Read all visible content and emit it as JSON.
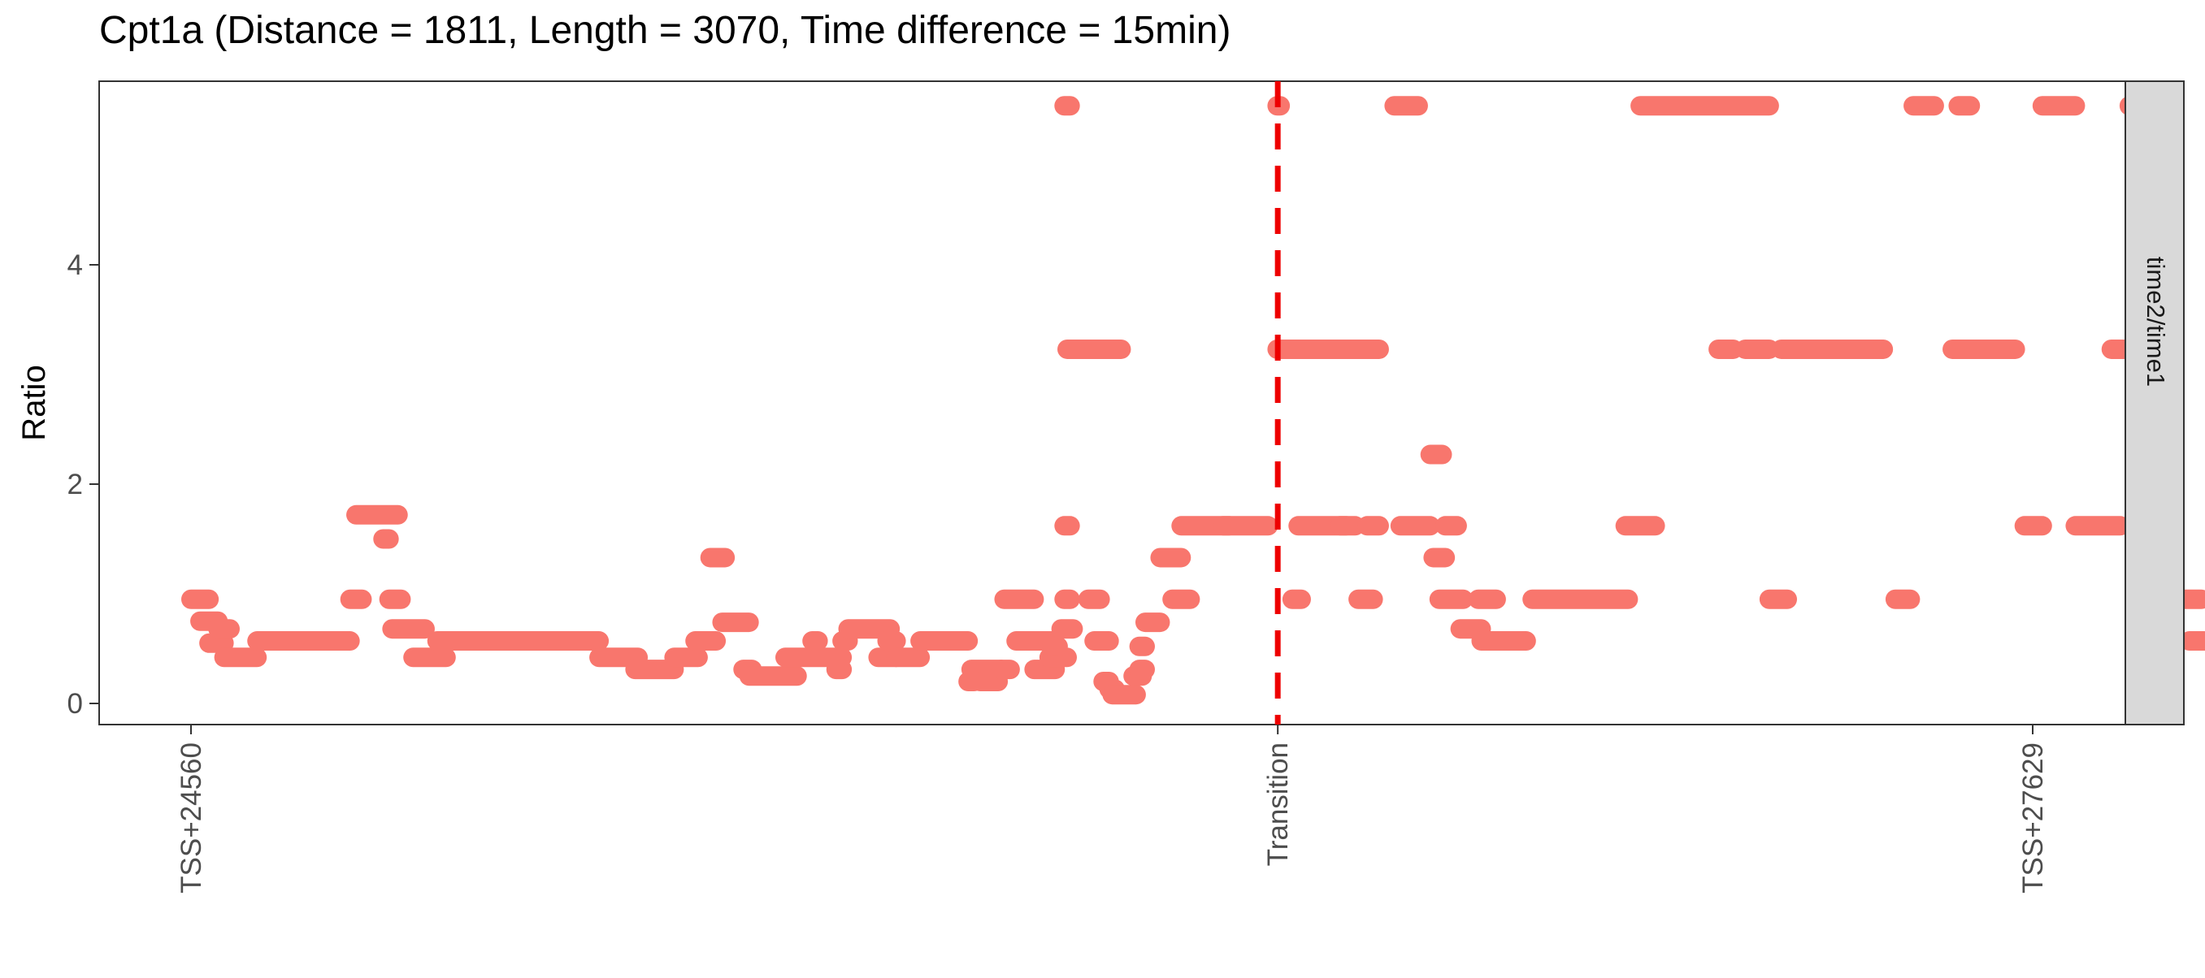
{
  "chart_data": {
    "type": "scatter",
    "title": "Cpt1a (Distance = 1811, Length = 3070, Time difference = 15min)",
    "xlabel": "",
    "ylabel": "Ratio",
    "facet_label": "time2/time1",
    "x_ticks": [
      {
        "label": "TSS+24560",
        "value": 24560
      },
      {
        "label": "Transition",
        "value": 26371
      },
      {
        "label": "TSS+27629",
        "value": 27629
      }
    ],
    "y_ticks": [
      0,
      2,
      4
    ],
    "xlim": [
      24410,
      27780
    ],
    "ylim": [
      -0.2,
      5.7
    ],
    "grid": false,
    "legend": "none",
    "point_color": "#F8766D",
    "vline": {
      "x": 26371,
      "color": "#EE0000",
      "style": "dashed"
    },
    "segments": [
      [
        24560,
        24590,
        0.95
      ],
      [
        24575,
        24605,
        0.75
      ],
      [
        24590,
        24615,
        0.55
      ],
      [
        24605,
        24625,
        0.68
      ],
      [
        24615,
        24670,
        0.42
      ],
      [
        24670,
        24825,
        0.57
      ],
      [
        24825,
        24845,
        0.95
      ],
      [
        24835,
        24905,
        1.72
      ],
      [
        24880,
        24890,
        1.5
      ],
      [
        24890,
        24910,
        0.95
      ],
      [
        24895,
        24950,
        0.68
      ],
      [
        24930,
        24985,
        0.42
      ],
      [
        24970,
        25240,
        0.57
      ],
      [
        25240,
        25305,
        0.42
      ],
      [
        25300,
        25365,
        0.31
      ],
      [
        25365,
        25405,
        0.42
      ],
      [
        25400,
        25435,
        0.57
      ],
      [
        25425,
        25450,
        1.33
      ],
      [
        25445,
        25490,
        0.74
      ],
      [
        25480,
        25495,
        0.31
      ],
      [
        25490,
        25570,
        0.25
      ],
      [
        25550,
        25645,
        0.42
      ],
      [
        25595,
        25605,
        0.57
      ],
      [
        25635,
        25645,
        0.31
      ],
      [
        25645,
        25655,
        0.57
      ],
      [
        25655,
        25725,
        0.68
      ],
      [
        25705,
        25735,
        0.42
      ],
      [
        25720,
        25735,
        0.57
      ],
      [
        25735,
        25775,
        0.42
      ],
      [
        25775,
        25855,
        0.57
      ],
      [
        25855,
        25865,
        0.2
      ],
      [
        25860,
        25910,
        0.31
      ],
      [
        25875,
        25905,
        0.2
      ],
      [
        25910,
        25925,
        0.31
      ],
      [
        25915,
        25965,
        0.95
      ],
      [
        25935,
        25995,
        0.57
      ],
      [
        25965,
        26000,
        0.31
      ],
      [
        25990,
        26020,
        0.42
      ],
      [
        25995,
        26005,
        0.52
      ],
      [
        26010,
        26030,
        0.68
      ],
      [
        26015,
        26025,
        0.95
      ],
      [
        26015,
        26025,
        1.62
      ],
      [
        26015,
        26025,
        5.45
      ],
      [
        26020,
        26110,
        3.23
      ],
      [
        26055,
        26075,
        0.95
      ],
      [
        26065,
        26090,
        0.57
      ],
      [
        26080,
        26090,
        0.2
      ],
      [
        26090,
        26100,
        0.13
      ],
      [
        26095,
        26135,
        0.08
      ],
      [
        26130,
        26145,
        0.25
      ],
      [
        26140,
        26150,
        0.31
      ],
      [
        26140,
        26150,
        0.52
      ],
      [
        26150,
        26175,
        0.74
      ],
      [
        26175,
        26210,
        1.33
      ],
      [
        26195,
        26225,
        0.95
      ],
      [
        26210,
        26290,
        1.62
      ],
      [
        26280,
        26355,
        1.62
      ],
      [
        26370,
        26375,
        5.45
      ],
      [
        26370,
        26540,
        3.23
      ],
      [
        26395,
        26410,
        0.95
      ],
      [
        26405,
        26485,
        1.62
      ],
      [
        26475,
        26500,
        1.62
      ],
      [
        26505,
        26530,
        0.95
      ],
      [
        26520,
        26540,
        1.62
      ],
      [
        26565,
        26605,
        5.45
      ],
      [
        26575,
        26625,
        1.62
      ],
      [
        26625,
        26645,
        2.27
      ],
      [
        26630,
        26650,
        1.33
      ],
      [
        26640,
        26680,
        0.95
      ],
      [
        26650,
        26670,
        1.62
      ],
      [
        26675,
        26710,
        0.68
      ],
      [
        26705,
        26735,
        0.95
      ],
      [
        26710,
        26785,
        0.57
      ],
      [
        26795,
        26955,
        0.95
      ],
      [
        26950,
        27000,
        1.62
      ],
      [
        26975,
        27190,
        5.45
      ],
      [
        27105,
        27130,
        3.23
      ],
      [
        27150,
        27190,
        3.23
      ],
      [
        27190,
        27220,
        0.95
      ],
      [
        27210,
        27380,
        3.23
      ],
      [
        27400,
        27425,
        0.95
      ],
      [
        27430,
        27465,
        5.45
      ],
      [
        27495,
        27600,
        3.23
      ],
      [
        27505,
        27525,
        5.45
      ],
      [
        27615,
        27645,
        1.62
      ],
      [
        27645,
        27700,
        5.45
      ],
      [
        27700,
        27775,
        1.62
      ],
      [
        27760,
        27800,
        3.23
      ],
      [
        27790,
        27795,
        5.45
      ],
      [
        27800,
        27840,
        1.62
      ],
      [
        27840,
        27910,
        0.95
      ],
      [
        27890,
        27915,
        0.57
      ]
    ]
  }
}
